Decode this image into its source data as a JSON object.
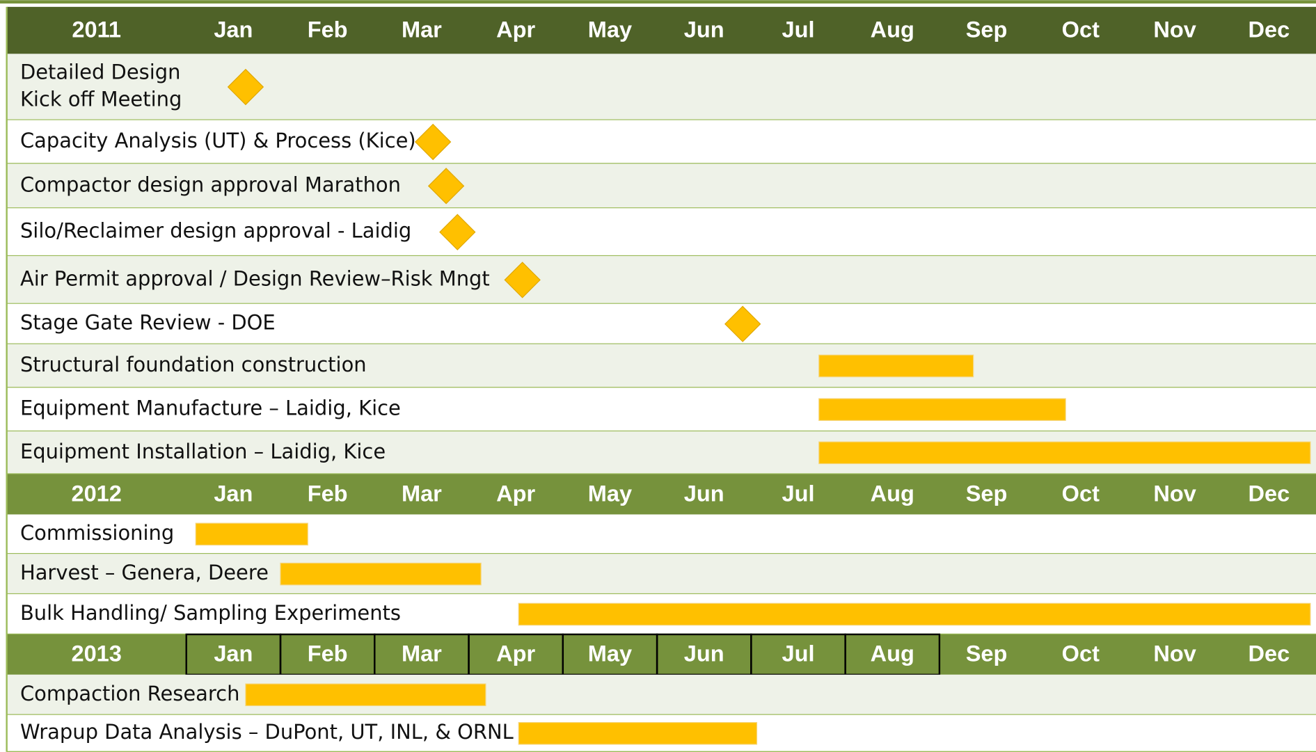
{
  "chart_data": {
    "type": "gantt",
    "sections": [
      {
        "year": "2011",
        "months": [
          "Jan",
          "Feb",
          "Mar",
          "Apr",
          "May",
          "Jun",
          "Jul",
          "Aug",
          "Sep",
          "Oct",
          "Nov",
          "Dec"
        ],
        "tasks": [
          {
            "label": [
              "Detailed Design",
              "Kick off Meeting"
            ],
            "milestone": 0.63
          },
          {
            "label": [
              "Capacity Analysis (UT) & Process (Kice)"
            ],
            "milestone": 2.62
          },
          {
            "label": [
              "Compactor design approval Marathon"
            ],
            "milestone": 2.76
          },
          {
            "label": [
              "Silo/Reclaimer design approval - Laidig"
            ],
            "milestone": 2.88
          },
          {
            "label": [
              "Air Permit approval / Design Review–Risk Mngt"
            ],
            "milestone": 3.57
          },
          {
            "label": [
              "Stage Gate Review - DOE"
            ],
            "milestone": 5.91
          },
          {
            "label": [
              "Structural foundation construction"
            ],
            "start": 6.72,
            "end": 8.36
          },
          {
            "label": [
              "Equipment Manufacture – Laidig, Kice"
            ],
            "start": 6.72,
            "end": 9.34
          },
          {
            "label": [
              "Equipment Installation – Laidig, Kice"
            ],
            "start": 6.72,
            "end": 11.94
          }
        ]
      },
      {
        "year": "2012",
        "months": [
          "Jan",
          "Feb",
          "Mar",
          "Apr",
          "May",
          "Jun",
          "Jul",
          "Aug",
          "Sep",
          "Oct",
          "Nov",
          "Dec"
        ],
        "tasks": [
          {
            "label": [
              "Commissioning"
            ],
            "start": 0.1,
            "end": 1.29
          },
          {
            "label": [
              "Harvest – Genera, Deere"
            ],
            "start": 1.0,
            "end": 3.13
          },
          {
            "label": [
              "Bulk Handling/ Sampling Experiments"
            ],
            "start": 3.53,
            "end": 11.94
          }
        ]
      },
      {
        "year": "2013",
        "months": [
          "Jan",
          "Feb",
          "Mar",
          "Apr",
          "May",
          "Jun",
          "Jul",
          "Aug",
          "Sep",
          "Oct",
          "Nov",
          "Dec"
        ],
        "tasks": [
          {
            "label": [
              "Compaction Research"
            ],
            "start": 0.63,
            "end": 3.18
          },
          {
            "label": [
              "Wrapup Data Analysis – DuPont, UT, INL, & ORNL"
            ],
            "start": 3.53,
            "end": 6.06
          }
        ]
      }
    ],
    "header_colors": [
      "#4f6228",
      "#76923c",
      "#76923c"
    ],
    "bar_color": "#ffc000",
    "xlim": [
      0,
      12
    ]
  }
}
